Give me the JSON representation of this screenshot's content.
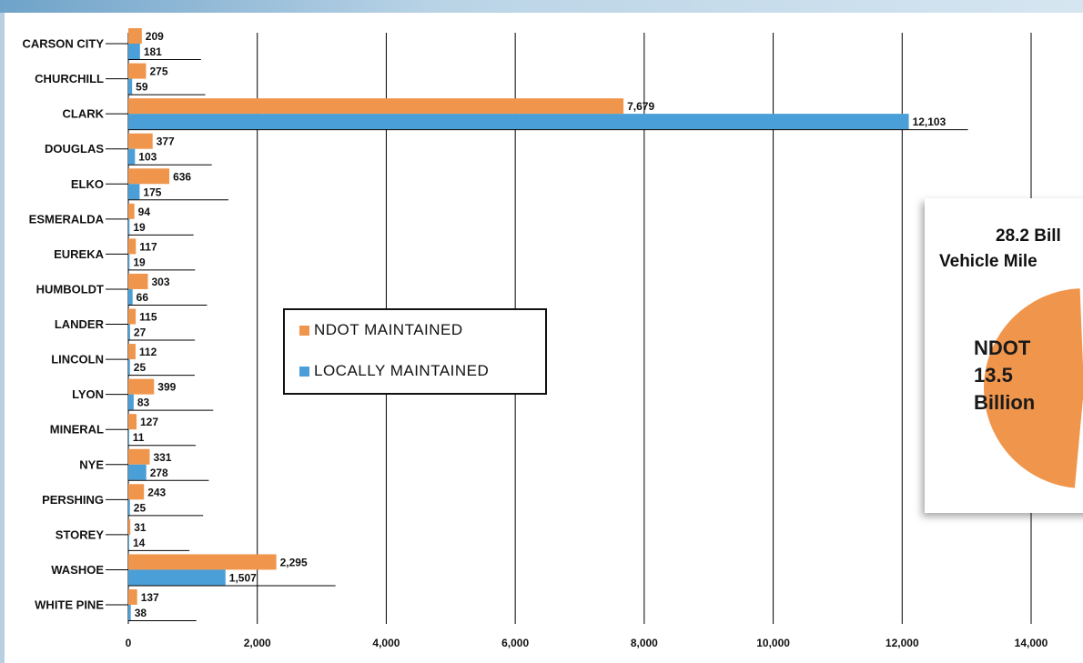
{
  "chart_data": {
    "type": "bar",
    "orientation": "horizontal",
    "categories": [
      "CARSON CITY",
      "CHURCHILL",
      "CLARK",
      "DOUGLAS",
      "ELKO",
      "ESMERALDA",
      "EUREKA",
      "HUMBOLDT",
      "LANDER",
      "LINCOLN",
      "LYON",
      "MINERAL",
      "NYE",
      "PERSHING",
      "STOREY",
      "WASHOE",
      "WHITE PINE"
    ],
    "series": [
      {
        "name": "NDOT MAINTAINED",
        "color": "#f0954c",
        "values": [
          209,
          275,
          7679,
          377,
          636,
          94,
          117,
          303,
          115,
          112,
          399,
          127,
          331,
          243,
          31,
          2295,
          137
        ]
      },
      {
        "name": "LOCALLY MAINTAINED",
        "color": "#4a9fd8",
        "values": [
          181,
          59,
          12103,
          103,
          175,
          19,
          19,
          66,
          27,
          25,
          83,
          11,
          278,
          25,
          14,
          1507,
          38
        ]
      }
    ],
    "value_labels": [
      [
        "209",
        "275",
        "7,679",
        "377",
        "636",
        "94",
        "117",
        "303",
        "115",
        "112",
        "399",
        "127",
        "331",
        "243",
        "31",
        "2,295",
        "137"
      ],
      [
        "181",
        "59",
        "12,103",
        "103",
        "175",
        "19",
        "19",
        "66",
        "27",
        "25",
        "83",
        "11",
        "278",
        "25",
        "14",
        "1,507",
        "38"
      ]
    ],
    "xlim": [
      0,
      14000
    ],
    "xticks": [
      0,
      2000,
      4000,
      6000,
      8000,
      10000,
      12000,
      14000
    ],
    "xtick_labels": [
      "0",
      "2,000",
      "4,000",
      "6,000",
      "8,000",
      "10,000",
      "12,000",
      "14,000"
    ],
    "grid": "vertical",
    "legend_position": "center-left",
    "title": "",
    "xlabel": "",
    "ylabel": ""
  },
  "legend": {
    "ndot_label": "NDOT MAINTAINED",
    "local_label": "LOCALLY MAINTAINED"
  },
  "callout": {
    "line1": "28.2 Bill",
    "line2": "Vehicle Mile",
    "pie_ndot_share": 0.479,
    "slice_label_1": "NDOT",
    "slice_label_2": "13.5",
    "slice_label_3": "Billion"
  },
  "colors": {
    "ndot": "#f0954c",
    "local": "#4a9fd8",
    "grid": "#000000"
  }
}
